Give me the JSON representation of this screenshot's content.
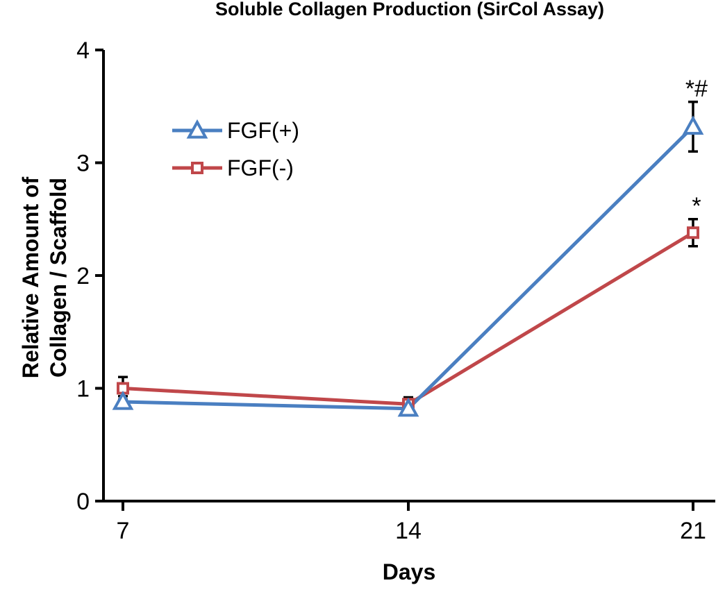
{
  "chart_data": {
    "type": "line",
    "title": "Soluble Collagen Production (SirCol Assay)",
    "xlabel": "Days",
    "ylabel_lines": [
      "Relative Amount of",
      "Collagen / Scaffold"
    ],
    "x": [
      7,
      14,
      21
    ],
    "x_tick_labels": [
      "7",
      "14",
      "21"
    ],
    "y_ticks": [
      0,
      1,
      2,
      3,
      4
    ],
    "y_tick_labels": [
      "0",
      "1",
      "2",
      "3",
      "4"
    ],
    "ylim": [
      0,
      4
    ],
    "grid": false,
    "legend_position": "top-left",
    "series": [
      {
        "name": "FGF(+)",
        "color": "#4a7fc1",
        "marker": "triangle",
        "values": [
          0.88,
          0.82,
          3.32
        ],
        "errors": [
          0.05,
          0.05,
          0.22
        ]
      },
      {
        "name": "FGF(-)",
        "color": "#c0474a",
        "marker": "square",
        "values": [
          1.0,
          0.86,
          2.38
        ],
        "errors": [
          0.1,
          0.06,
          0.12
        ]
      }
    ],
    "annotations": [
      {
        "text": "*#",
        "series": 0,
        "x": 21
      },
      {
        "text": "*",
        "series": 1,
        "x": 21
      }
    ]
  }
}
